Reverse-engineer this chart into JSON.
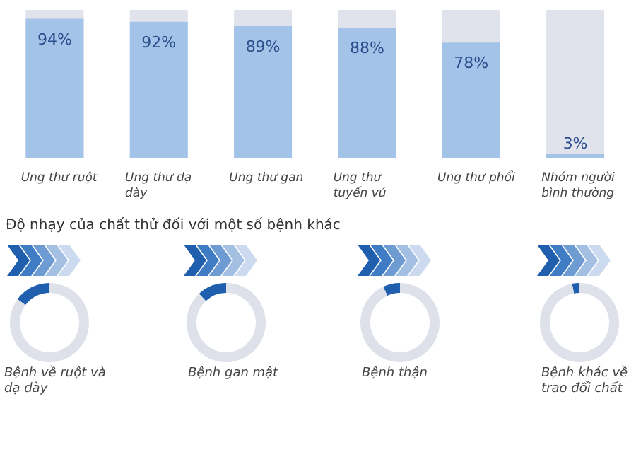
{
  "chart_data": [
    {
      "type": "bar",
      "categories": [
        "Ung thư ruột",
        "Ung thư dạ dày",
        "Ung thư gan",
        "Ung thư tuyến vú",
        "Ung thư phổi",
        "Nhóm người bình thường"
      ],
      "values": [
        94,
        92,
        89,
        88,
        78,
        3
      ],
      "value_labels": [
        "94%",
        "92%",
        "89%",
        "88%",
        "78%",
        "3%"
      ],
      "color": "#a3c4e8",
      "ylim": [
        0,
        100
      ],
      "tick_labels": "x"
    },
    {
      "type": "donut",
      "title": "Độ nhạy của chất thử đối với một số bệnh khác",
      "xlabel": "Bệnh về ruột và dạ dày",
      "categories": [
        null,
        null
      ],
      "values": [
        15,
        85
      ],
      "colors": [
        "#1f5fad",
        "#dfe1ea"
      ]
    },
    {
      "type": "donut",
      "xlabel": "Bệnh gan mật",
      "categories": [
        null,
        null
      ],
      "values": [
        12,
        88
      ],
      "colors": [
        "#1f5fad",
        "#dfe1ea"
      ]
    },
    {
      "type": "donut",
      "xlabel": "Bệnh thận",
      "categories": [
        null,
        null
      ],
      "values": [
        7,
        93
      ],
      "colors": [
        "#1f5fad",
        "#dfe1ea"
      ]
    },
    {
      "type": "donut",
      "xlabel": "Bệnh khác về trao đổi chất",
      "categories": [
        null,
        null
      ],
      "values": [
        3,
        97
      ],
      "colors": [
        "#1f5fad",
        "#dfe1ea"
      ]
    }
  ]
}
